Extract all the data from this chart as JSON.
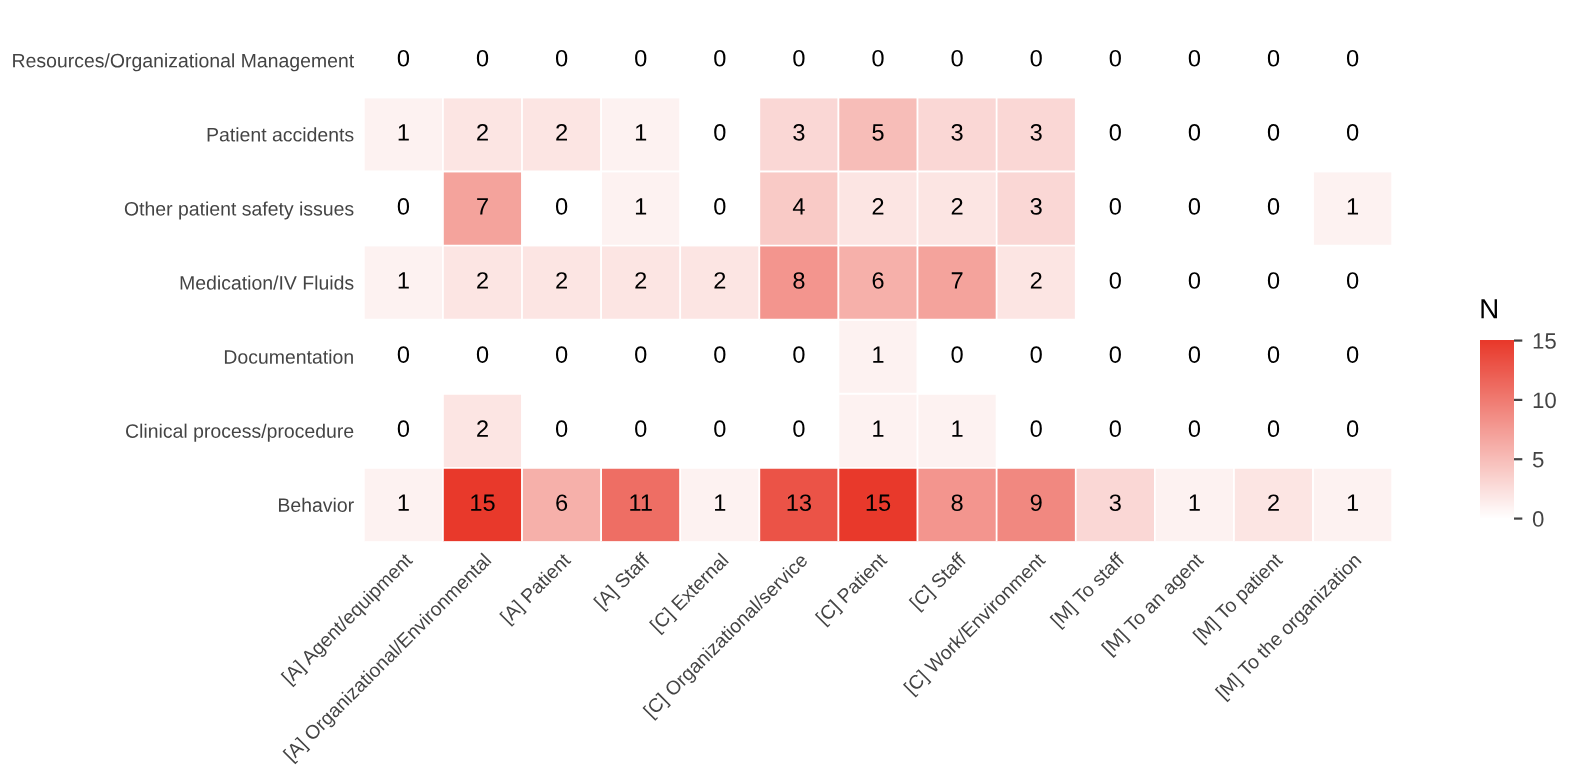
{
  "chart_data": {
    "type": "heatmap",
    "categories": [
      "[A] Agent/equipment",
      "[A] Organizational/Environmental",
      "[A] Patient",
      "[A] Staff",
      "[C] External",
      "[C] Organizational/service",
      "[C] Patient",
      "[C] Staff",
      "[C] Work/Environment",
      "[M] To staff",
      "[M] To an agent",
      "[M] To patient",
      "[M] To the organization"
    ],
    "y_categories": [
      "Resources/Organizational Management",
      "Patient accidents",
      "Other patient safety issues",
      "Medication/IV Fluids",
      "Documentation",
      "Clinical process/procedure",
      "Behavior"
    ],
    "cells": [
      [
        0,
        0,
        0,
        0,
        0,
        0,
        0,
        0,
        0,
        0,
        0,
        0,
        0
      ],
      [
        1,
        2,
        2,
        1,
        0,
        3,
        5,
        3,
        3,
        0,
        0,
        0,
        0
      ],
      [
        0,
        7,
        0,
        1,
        0,
        4,
        2,
        2,
        3,
        0,
        0,
        0,
        1
      ],
      [
        1,
        2,
        2,
        2,
        2,
        8,
        6,
        7,
        2,
        0,
        0,
        0,
        0
      ],
      [
        0,
        0,
        0,
        0,
        0,
        0,
        1,
        0,
        0,
        0,
        0,
        0,
        0
      ],
      [
        0,
        2,
        0,
        0,
        0,
        0,
        1,
        1,
        0,
        0,
        0,
        0,
        0
      ],
      [
        1,
        15,
        6,
        11,
        1,
        13,
        15,
        8,
        9,
        3,
        1,
        2,
        1
      ]
    ],
    "colors": [
      "#ffffff",
      "#e8392b"
    ],
    "clabel": "N",
    "clim": [
      0,
      15
    ],
    "cticks": [
      0,
      5,
      10,
      15
    ],
    "data_labels": true,
    "grid": false
  }
}
